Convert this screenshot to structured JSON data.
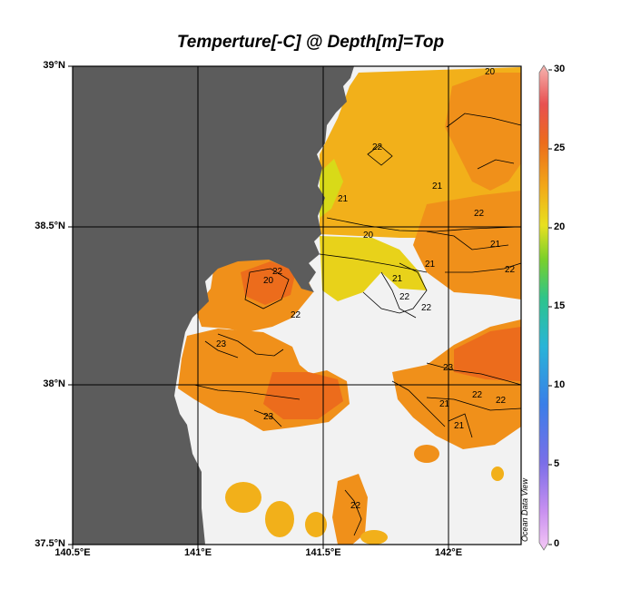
{
  "title": "Temperture[-C] @ Depth[m]=Top",
  "lat_labels": [
    "39°N",
    "38.5°N",
    "38°N",
    "37.5°N"
  ],
  "lon_labels": [
    "140.5°E",
    "141°E",
    "141.5°E",
    "142°E"
  ],
  "colorbar": {
    "min": 0,
    "max": 30,
    "ticks": [
      "30",
      "25",
      "20",
      "15",
      "10",
      "5",
      "0"
    ]
  },
  "credit": "Ocean Data View",
  "contour_labels": [
    "20",
    "22",
    "21",
    "21",
    "20",
    "21",
    "21",
    "22",
    "20",
    "22",
    "21",
    "22",
    "23",
    "23",
    "22",
    "22",
    "23",
    "22",
    "21",
    "21",
    "22",
    "22",
    "22"
  ],
  "colors": {
    "land": "#5c5c5c",
    "no_data": "#f2f2f2",
    "orange": "#f0901a",
    "deep_orange": "#ec6c1c",
    "amber": "#f2b01a",
    "yellow": "#e8d21a",
    "yellow_green": "#d8da18"
  }
}
